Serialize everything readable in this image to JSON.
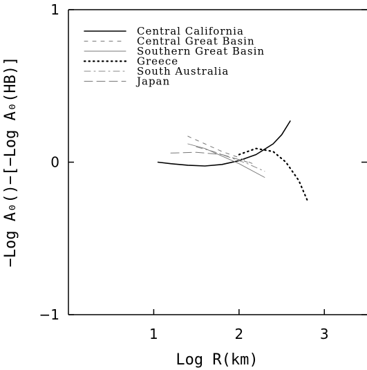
{
  "chart_data": {
    "type": "line",
    "title": "",
    "xlabel": "Log R(km)",
    "ylabel": "−Log A₀()−[−Log A₀(HB)]",
    "xlim": [
      0,
      3.5
    ],
    "ylim": [
      -1,
      1
    ],
    "x_ticks": [
      1,
      2,
      3
    ],
    "y_ticks": [
      -1,
      0,
      1
    ],
    "x_tick_labels": [
      "1",
      "2",
      "3"
    ],
    "y_tick_labels": [
      "−1",
      "0",
      "1"
    ],
    "grid": false,
    "legend_position": "top-left",
    "series": [
      {
        "name": "Central California",
        "style": "solid",
        "x": [
          1.05,
          1.2,
          1.4,
          1.6,
          1.8,
          2.0,
          2.2,
          2.4,
          2.5,
          2.6
        ],
        "y": [
          0.0,
          -0.01,
          -0.02,
          -0.025,
          -0.015,
          0.01,
          0.05,
          0.12,
          0.18,
          0.27
        ]
      },
      {
        "name": "Central Great Basin",
        "style": "short-dash",
        "x": [
          1.4,
          1.6,
          1.8,
          2.0,
          2.2
        ],
        "y": [
          0.17,
          0.12,
          0.07,
          0.03,
          -0.02
        ]
      },
      {
        "name": "Southern Great Basin",
        "style": "solid-thin",
        "x": [
          1.4,
          1.6,
          1.8,
          2.0,
          2.3
        ],
        "y": [
          0.12,
          0.09,
          0.04,
          -0.01,
          -0.1
        ]
      },
      {
        "name": "Greece",
        "style": "dotted",
        "x": [
          2.0,
          2.2,
          2.4,
          2.55,
          2.7,
          2.8
        ],
        "y": [
          0.05,
          0.09,
          0.07,
          0.0,
          -0.12,
          -0.25
        ]
      },
      {
        "name": "South Australia",
        "style": "dash-dot",
        "x": [
          1.5,
          1.7,
          1.9,
          2.1,
          2.3
        ],
        "y": [
          0.1,
          0.07,
          0.03,
          -0.01,
          -0.06
        ]
      },
      {
        "name": "Japan",
        "style": "long-dash",
        "x": [
          1.2,
          1.5,
          1.8,
          2.1
        ],
        "y": [
          0.06,
          0.065,
          0.05,
          0.0
        ]
      }
    ]
  }
}
